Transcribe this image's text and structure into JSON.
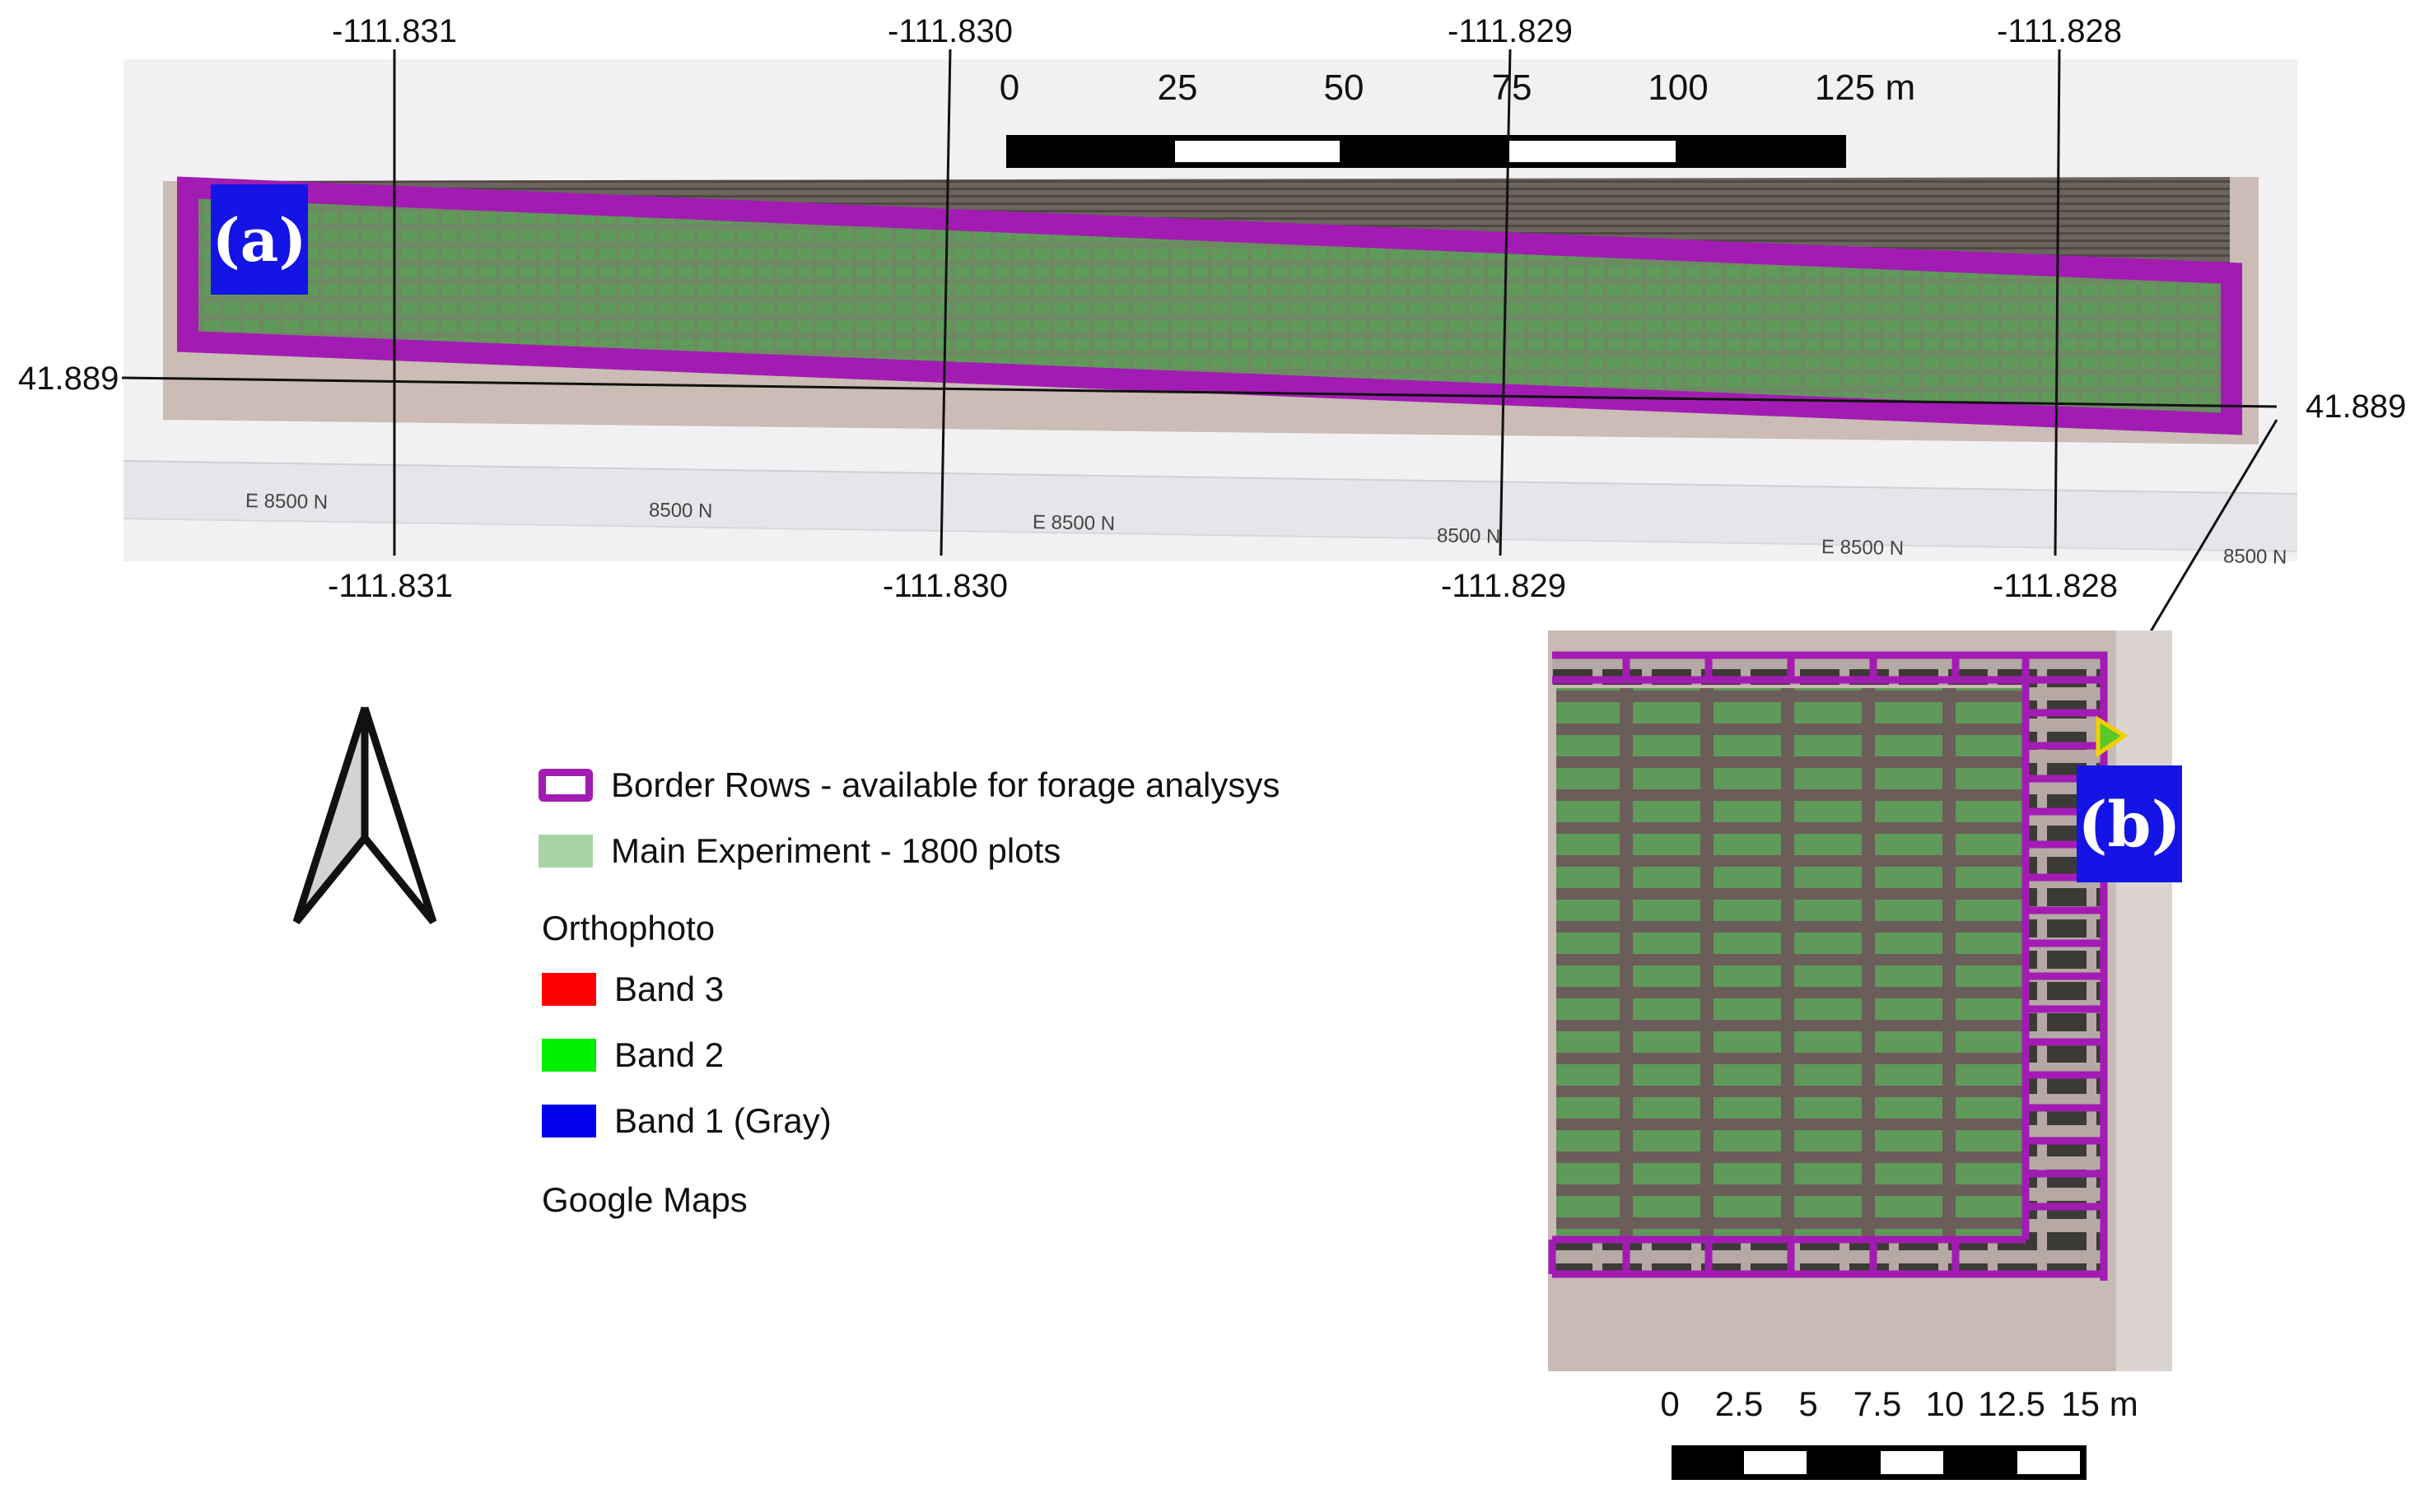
{
  "map_a": {
    "label": "(a)",
    "top_longitudes": [
      "-111.831",
      "-111.830",
      "-111.829",
      "-111.828"
    ],
    "bottom_longitudes": [
      "-111.831",
      "-111.830",
      "-111.829",
      "-111.828"
    ],
    "latitude_left": "41.889",
    "latitude_right": "41.889",
    "road_labels": [
      "E 8500 N",
      "8500 N",
      "E 8500 N",
      "8500 N",
      "E 8500 N",
      "8500 N"
    ],
    "scale_bar": {
      "ticks": [
        "0",
        "25",
        "50",
        "75",
        "100",
        "125 m"
      ]
    }
  },
  "map_b": {
    "label": "(b)",
    "scale_bar": {
      "ticks": [
        "0",
        "2.5",
        "5",
        "7.5",
        "10",
        "12.5",
        "15 m"
      ]
    }
  },
  "north_arrow": {
    "icon": "north-arrow-icon"
  },
  "legend": {
    "items": [
      {
        "label": "Border Rows - available for forage analysys",
        "color": "#a21cb3",
        "kind": "outline"
      },
      {
        "label": "Main Experiment - 1800 plots",
        "color": "#a8d4a4",
        "kind": "fill"
      }
    ],
    "orthophoto_header": "Orthophoto",
    "bands": [
      {
        "label": "Band 3",
        "color": "#ff0000"
      },
      {
        "label": "Band 2",
        "color": "#00ee00"
      },
      {
        "label": "Band 1 (Gray)",
        "color": "#0000ee"
      }
    ],
    "basemap_header": "Google Maps"
  },
  "colors": {
    "border_purple": "#a21cb3",
    "plot_green": "#5f9a5a",
    "label_blue": "#1414e6",
    "soil": "#c9bcb6"
  }
}
